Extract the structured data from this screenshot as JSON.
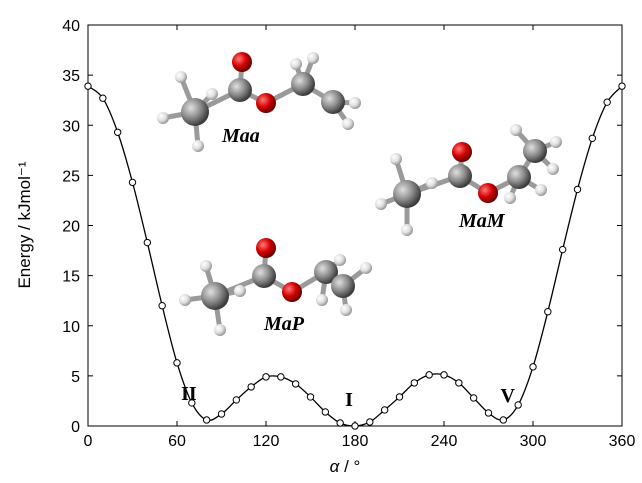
{
  "chart_data": {
    "type": "line",
    "ylabel": "Energy / kJmol⁻¹",
    "xlabel_symbol": "α",
    "xlabel_unit": " / °",
    "xlim": [
      0,
      360
    ],
    "ylim": [
      0,
      40
    ],
    "xticks": [
      0,
      60,
      120,
      180,
      240,
      300,
      360
    ],
    "yticks": [
      0,
      5,
      10,
      15,
      20,
      25,
      30,
      35,
      40
    ],
    "grid": false,
    "series": [
      {
        "x": [
          0,
          10,
          20,
          30,
          40,
          50,
          60,
          70,
          80,
          90,
          100,
          110,
          120,
          130,
          140,
          150,
          160,
          170,
          180,
          190,
          200,
          210,
          220,
          230,
          240,
          250,
          260,
          270,
          280,
          290,
          300,
          310,
          320,
          330,
          340,
          350,
          360
        ],
        "y": [
          33.9,
          32.7,
          29.3,
          24.3,
          18.3,
          12.0,
          6.3,
          2.3,
          0.6,
          1.2,
          2.6,
          3.9,
          4.9,
          4.9,
          4.2,
          2.9,
          1.4,
          0.3,
          0.0,
          0.4,
          1.6,
          2.9,
          4.3,
          5.1,
          5.1,
          4.3,
          2.8,
          1.3,
          0.6,
          2.1,
          5.9,
          11.4,
          17.6,
          23.6,
          28.7,
          32.3,
          33.9
        ]
      }
    ],
    "annotations": [
      {
        "text": "II",
        "x": 68,
        "y": 2.6
      },
      {
        "text": "I",
        "x": 176,
        "y": 2.0
      },
      {
        "text": "V",
        "x": 283,
        "y": 2.4
      }
    ],
    "molecule_labels": [
      {
        "text": "Maa"
      },
      {
        "text": "MaM"
      },
      {
        "text": "MaP"
      }
    ],
    "atom_colors": {
      "carbon": "#8c8c8c",
      "oxygen": "#d40000",
      "hydrogen": "#e6e6e6",
      "bond": "#9a9a9a"
    }
  }
}
